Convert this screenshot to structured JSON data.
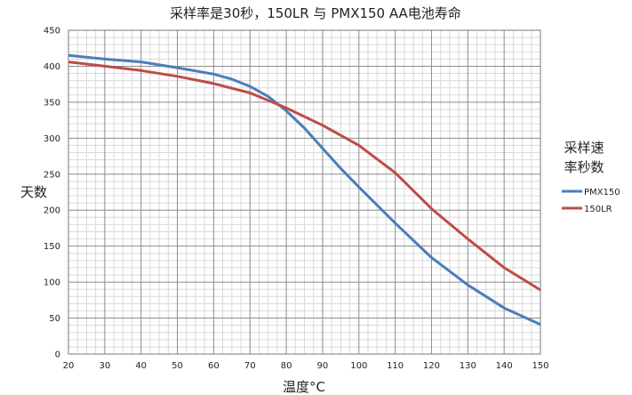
{
  "chart_data": {
    "type": "line",
    "title": "采样率是30秒，150LR 与  PMX150 AA电池寿命",
    "xlabel": "温度°C",
    "ylabel": "天数",
    "xlim": [
      20,
      150
    ],
    "ylim": [
      0,
      450
    ],
    "x_ticks": [
      "20",
      "30",
      "40",
      "50",
      "60",
      "70",
      "80",
      "90",
      "100",
      "110",
      "120",
      "130",
      "140",
      "150"
    ],
    "y_ticks": [
      "0",
      "50",
      "100",
      "150",
      "200",
      "250",
      "300",
      "350",
      "400",
      "450"
    ],
    "grid": true,
    "legend": {
      "title_lines": [
        "采样速",
        "率秒数"
      ],
      "placement": "right"
    },
    "series": [
      {
        "name": "PMX150",
        "color": "#4a7ebb",
        "points": [
          [
            20,
            415
          ],
          [
            30,
            410
          ],
          [
            40,
            406
          ],
          [
            50,
            398
          ],
          [
            60,
            389
          ],
          [
            65,
            382
          ],
          [
            70,
            372
          ],
          [
            75,
            358
          ],
          [
            80,
            338
          ],
          [
            85,
            314
          ],
          [
            90,
            286
          ],
          [
            95,
            258
          ],
          [
            100,
            232
          ],
          [
            110,
            182
          ],
          [
            120,
            134
          ],
          [
            130,
            96
          ],
          [
            140,
            64
          ],
          [
            150,
            41
          ]
        ]
      },
      {
        "name": "150LR",
        "color": "#be4b48",
        "points": [
          [
            20,
            406
          ],
          [
            30,
            400
          ],
          [
            40,
            394
          ],
          [
            50,
            386
          ],
          [
            60,
            376
          ],
          [
            70,
            363
          ],
          [
            80,
            342
          ],
          [
            90,
            318
          ],
          [
            100,
            290
          ],
          [
            110,
            252
          ],
          [
            120,
            202
          ],
          [
            130,
            160
          ],
          [
            140,
            120
          ],
          [
            150,
            89
          ]
        ]
      }
    ]
  }
}
